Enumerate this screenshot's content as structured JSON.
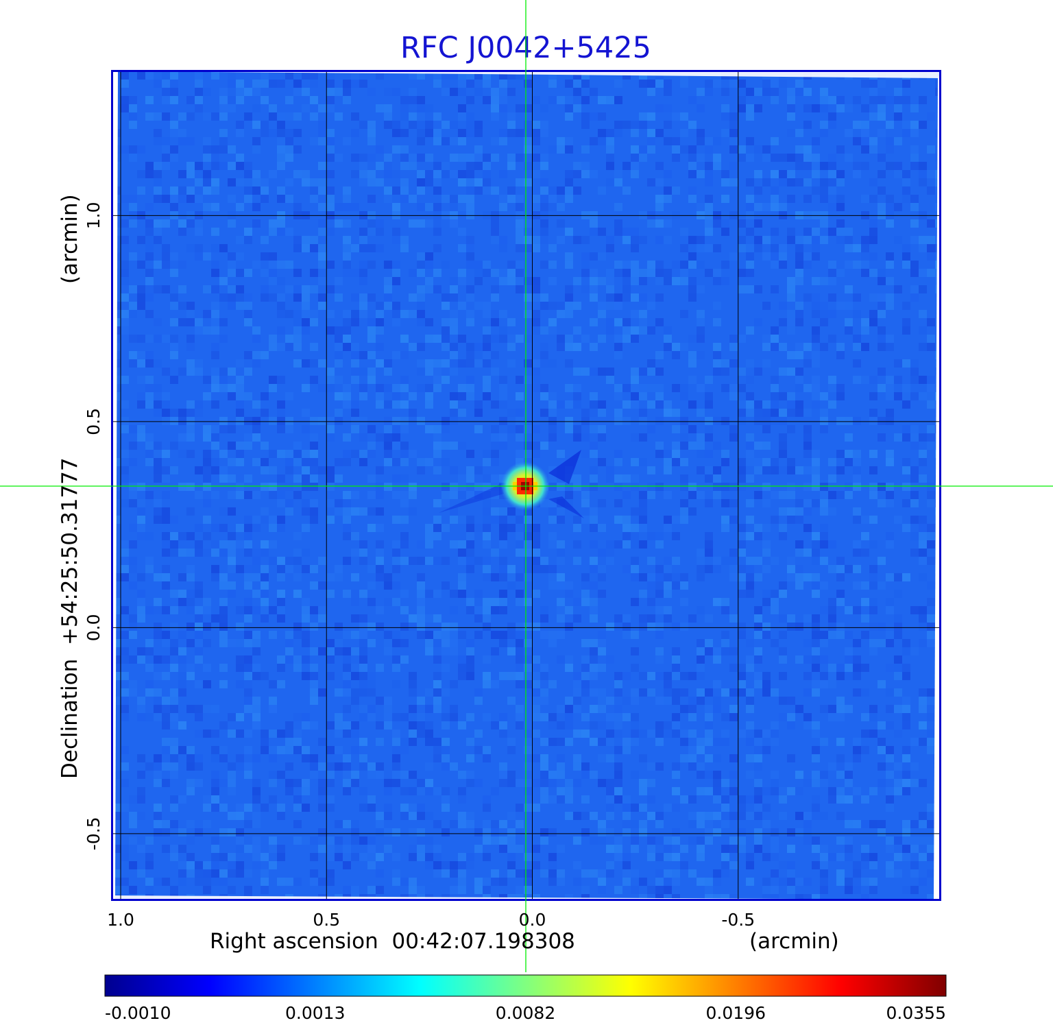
{
  "chart_data": {
    "type": "heatmap",
    "title": "RFC J0042+5425",
    "xlabel": "Right ascension  00:42:07.198308",
    "x_unit": "(arcmin)",
    "ylabel": "Declination  +54:25:50.31777",
    "y_unit": "(arcmin)",
    "xlim": [
      1.02,
      -0.99
    ],
    "ylim": [
      -0.66,
      1.35
    ],
    "x_ticks": [
      1.0,
      0.5,
      0.0,
      -0.5
    ],
    "x_tick_labels": [
      "1.0",
      "0.5",
      "0.0",
      "-0.5"
    ],
    "y_ticks": [
      1.0,
      0.5,
      0.0,
      -0.5
    ],
    "y_tick_labels": [
      "1.0",
      "0.5",
      "0.0",
      "-0.5"
    ],
    "grid": true,
    "crosshair": [
      0.01,
      0.34
    ],
    "source_peak": {
      "x": 0.0,
      "y": 0.34,
      "value": 0.0355
    },
    "colorbar": {
      "colormap": "jet",
      "tick_labels": [
        "-0.0010",
        "0.0013",
        "0.0082",
        "0.0196",
        "0.0355"
      ],
      "tick_values": [
        -0.001,
        0.0013,
        0.0082,
        0.0196,
        0.0355
      ]
    },
    "colors": {
      "title": "#1414d2",
      "frame": "#0000cc",
      "crosshair": "#00ee00",
      "background_map": "#1e64f0"
    }
  }
}
